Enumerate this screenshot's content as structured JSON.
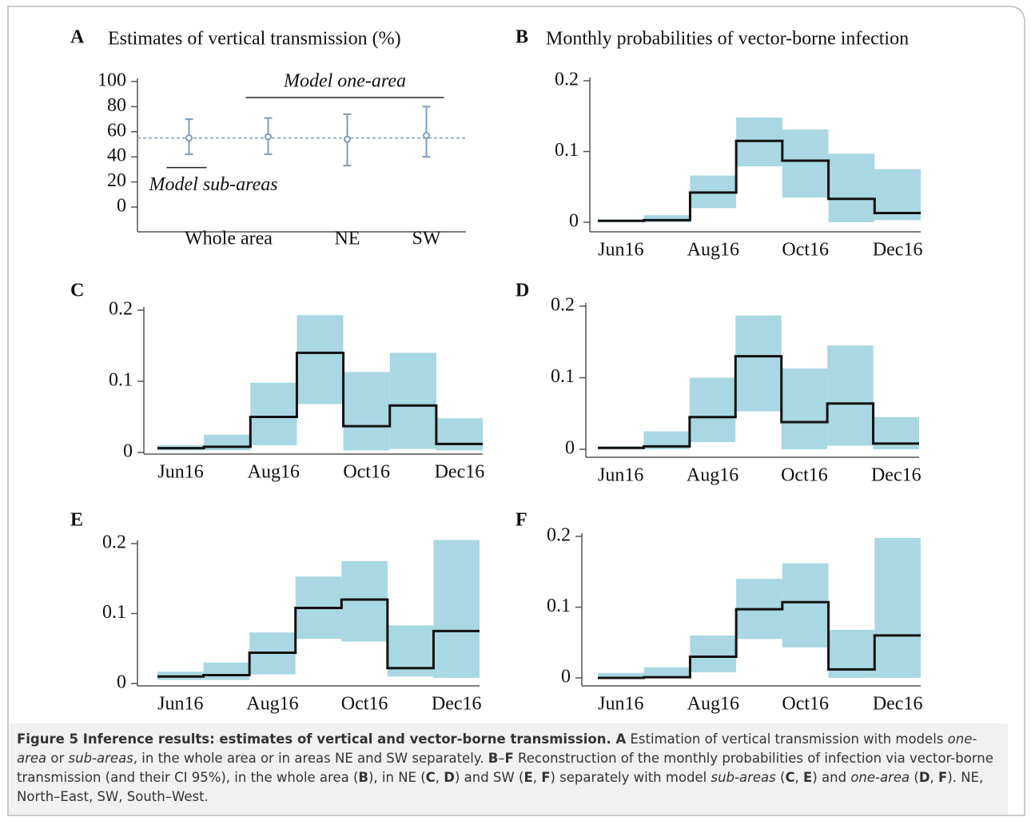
{
  "chart_data": [
    {
      "type": "errorbar",
      "panel": "A",
      "title": "Estimates of vertical transmission (%)",
      "categories": [
        "Whole area",
        null,
        "NE",
        "SW"
      ],
      "values": [
        55,
        56,
        54,
        57
      ],
      "lower": [
        42,
        42,
        33,
        40
      ],
      "upper": [
        70,
        71,
        74,
        80
      ],
      "hline": 55,
      "color": "#7f9bbf",
      "ylim": [
        0,
        100
      ],
      "yticks": [
        0,
        20,
        40,
        60,
        80,
        100
      ],
      "annotations": [
        {
          "text": "Model one-area",
          "categories": [
            1,
            2,
            3
          ]
        },
        {
          "text": "Model sub-areas",
          "categories": [
            0
          ]
        }
      ]
    },
    {
      "type": "step",
      "panel": "B",
      "title": "Monthly probabilities of vector-borne infection",
      "categories": [
        "Jun16",
        null,
        "Aug16",
        null,
        "Oct16",
        null,
        "Dec16"
      ],
      "values": [
        0.002,
        0.003,
        0.042,
        0.115,
        0.087,
        0.033,
        0.013
      ],
      "lower": [
        0,
        0,
        0.02,
        0.079,
        0.035,
        0,
        0.003
      ],
      "upper": [
        0.004,
        0.01,
        0.066,
        0.148,
        0.131,
        0.097,
        0.075
      ],
      "color": "#111111",
      "band_color": "#a9d7e4",
      "ylim": [
        0,
        0.2
      ],
      "yticks": [
        0,
        0.1,
        0.2
      ]
    },
    {
      "type": "step",
      "panel": "C",
      "categories": [
        "Jun16",
        null,
        "Aug16",
        null,
        "Oct16",
        null,
        "Dec16"
      ],
      "values": [
        0.006,
        0.008,
        0.05,
        0.14,
        0.037,
        0.066,
        0.012
      ],
      "lower": [
        0.003,
        0.003,
        0.01,
        0.068,
        0.003,
        0.005,
        0.003
      ],
      "upper": [
        0.01,
        0.025,
        0.098,
        0.193,
        0.113,
        0.14,
        0.048
      ],
      "color": "#111111",
      "band_color": "#a9d7e4",
      "ylim": [
        0,
        0.2
      ],
      "yticks": [
        0,
        0.1,
        0.2
      ]
    },
    {
      "type": "step",
      "panel": "D",
      "categories": [
        "Jun16",
        null,
        "Aug16",
        null,
        "Oct16",
        null,
        "Dec16"
      ],
      "values": [
        0.002,
        0.004,
        0.045,
        0.13,
        0.038,
        0.064,
        0.008
      ],
      "lower": [
        0,
        0,
        0.01,
        0.053,
        0,
        0.005,
        0
      ],
      "upper": [
        0.004,
        0.025,
        0.1,
        0.187,
        0.113,
        0.145,
        0.045
      ],
      "color": "#111111",
      "band_color": "#a9d7e4",
      "ylim": [
        0,
        0.2
      ],
      "yticks": [
        0,
        0.1,
        0.2
      ]
    },
    {
      "type": "step",
      "panel": "E",
      "categories": [
        "Jun16",
        null,
        "Aug16",
        null,
        "Oct16",
        null,
        "Dec16"
      ],
      "values": [
        0.01,
        0.012,
        0.044,
        0.108,
        0.12,
        0.022,
        0.075
      ],
      "lower": [
        0.005,
        0.005,
        0.013,
        0.064,
        0.06,
        0.01,
        0.008
      ],
      "upper": [
        0.017,
        0.03,
        0.073,
        0.153,
        0.175,
        0.083,
        0.205
      ],
      "color": "#111111",
      "band_color": "#a9d7e4",
      "ylim": [
        0,
        0.2
      ],
      "yticks": [
        0,
        0.1,
        0.2
      ]
    },
    {
      "type": "step",
      "panel": "F",
      "categories": [
        "Jun16",
        null,
        "Aug16",
        null,
        "Oct16",
        null,
        "Dec16"
      ],
      "values": [
        0,
        0.001,
        0.03,
        0.097,
        0.107,
        0.012,
        0.06
      ],
      "lower": [
        0,
        0,
        0.008,
        0.055,
        0.043,
        0,
        0
      ],
      "upper": [
        0.007,
        0.015,
        0.06,
        0.14,
        0.162,
        0.068,
        0.198
      ],
      "color": "#111111",
      "band_color": "#a9d7e4",
      "ylim": [
        0,
        0.2
      ],
      "yticks": [
        0,
        0.1,
        0.2
      ]
    }
  ],
  "caption": {
    "runs": [
      {
        "text": "Figure 5  Inference results: estimates of vertical and vector-borne transmission. ",
        "style": "bold"
      },
      {
        "text": "A",
        "style": "bold"
      },
      {
        "text": " Estimation of vertical transmission with models ",
        "style": "normal"
      },
      {
        "text": "one-area",
        "style": "italic"
      },
      {
        "text": " or ",
        "style": "normal"
      },
      {
        "text": "sub-areas",
        "style": "italic"
      },
      {
        "text": ", in the whole area or in areas NE and SW separately. ",
        "style": "normal"
      },
      {
        "text": "B",
        "style": "bold"
      },
      {
        "text": "–",
        "style": "normal"
      },
      {
        "text": "F",
        "style": "bold"
      },
      {
        "text": " Reconstruction of the monthly probabilities of infection via vector-borne transmission (and their CI 95%), in the whole area (",
        "style": "normal"
      },
      {
        "text": "B",
        "style": "bold"
      },
      {
        "text": "), in NE (",
        "style": "normal"
      },
      {
        "text": "C",
        "style": "bold"
      },
      {
        "text": ", ",
        "style": "normal"
      },
      {
        "text": "D",
        "style": "bold"
      },
      {
        "text": ") and SW (",
        "style": "normal"
      },
      {
        "text": "E",
        "style": "bold"
      },
      {
        "text": ", ",
        "style": "normal"
      },
      {
        "text": "F",
        "style": "bold"
      },
      {
        "text": ") separately with model ",
        "style": "normal"
      },
      {
        "text": "sub-areas",
        "style": "italic"
      },
      {
        "text": " (",
        "style": "normal"
      },
      {
        "text": "C",
        "style": "bold"
      },
      {
        "text": ", ",
        "style": "normal"
      },
      {
        "text": "E",
        "style": "bold"
      },
      {
        "text": ") and ",
        "style": "normal"
      },
      {
        "text": "one-area",
        "style": "italic"
      },
      {
        "text": " (",
        "style": "normal"
      },
      {
        "text": "D",
        "style": "bold"
      },
      {
        "text": ", ",
        "style": "normal"
      },
      {
        "text": "F",
        "style": "bold"
      },
      {
        "text": "). NE, North–East, SW, South–West.",
        "style": "normal"
      }
    ]
  }
}
